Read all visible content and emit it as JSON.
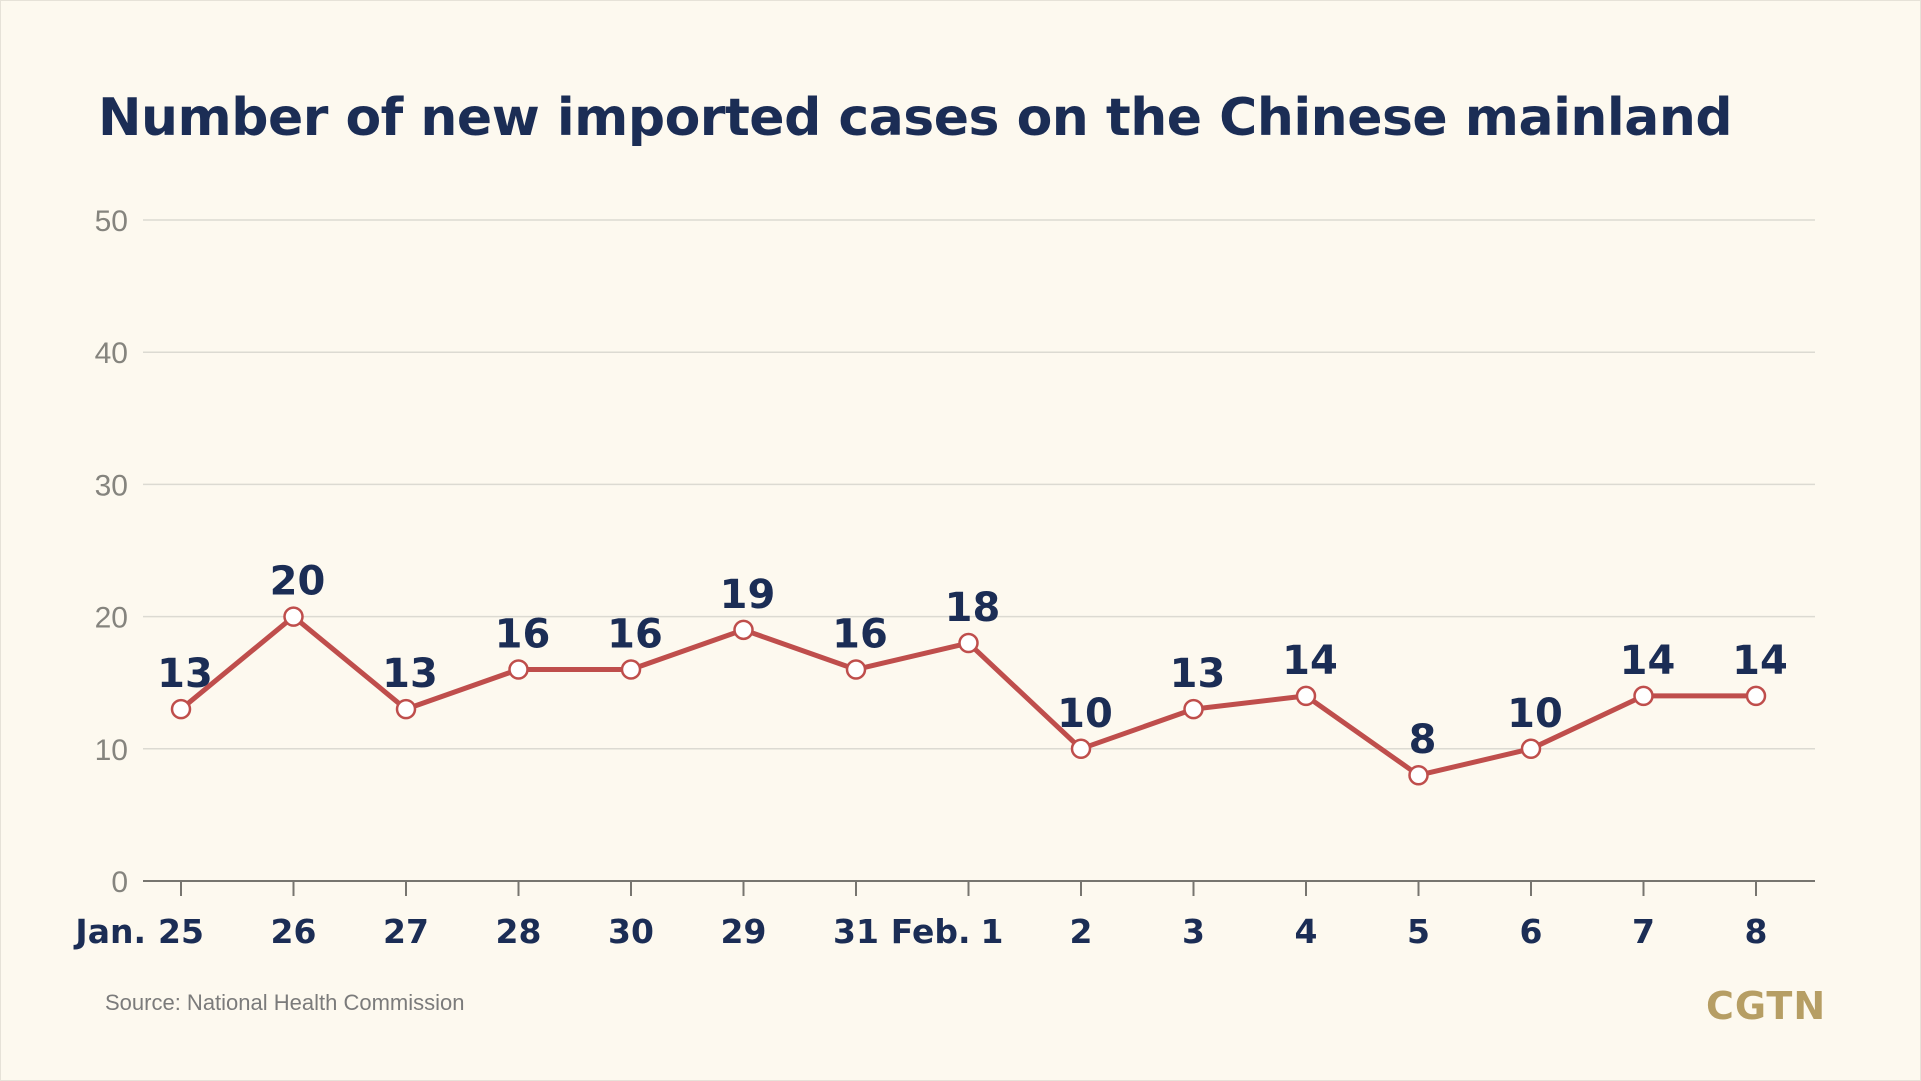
{
  "colors": {
    "background": "#fdf9ef",
    "title": "#1b2d55",
    "line": "#bf4e4c",
    "grid": "#dcdad2",
    "tick_label": "#85847e",
    "logo": "#b69e64"
  },
  "source": "Source: National Health Commission",
  "logo": "CGTN",
  "chart_data": {
    "type": "line",
    "title": "Number of new imported cases on the Chinese mainland",
    "xlabel": "",
    "ylabel": "",
    "ylim": [
      0,
      50
    ],
    "yticks": [
      0,
      10,
      20,
      30,
      40,
      50
    ],
    "grid": true,
    "month_labels": [
      {
        "index": 0,
        "text": "Jan."
      },
      {
        "index": 7,
        "text": "Feb."
      }
    ],
    "categories": [
      "25",
      "26",
      "27",
      "28",
      "30",
      "29",
      "31",
      "1",
      "2",
      "3",
      "4",
      "5",
      "6",
      "7",
      "8"
    ],
    "values": [
      13,
      20,
      13,
      16,
      16,
      19,
      16,
      18,
      10,
      13,
      14,
      8,
      10,
      14,
      14
    ],
    "data_labels": [
      "13",
      "20",
      "13",
      "16",
      "16",
      "19",
      "16",
      "18",
      "10",
      "13",
      "14",
      "8",
      "10",
      "14",
      "14"
    ]
  }
}
